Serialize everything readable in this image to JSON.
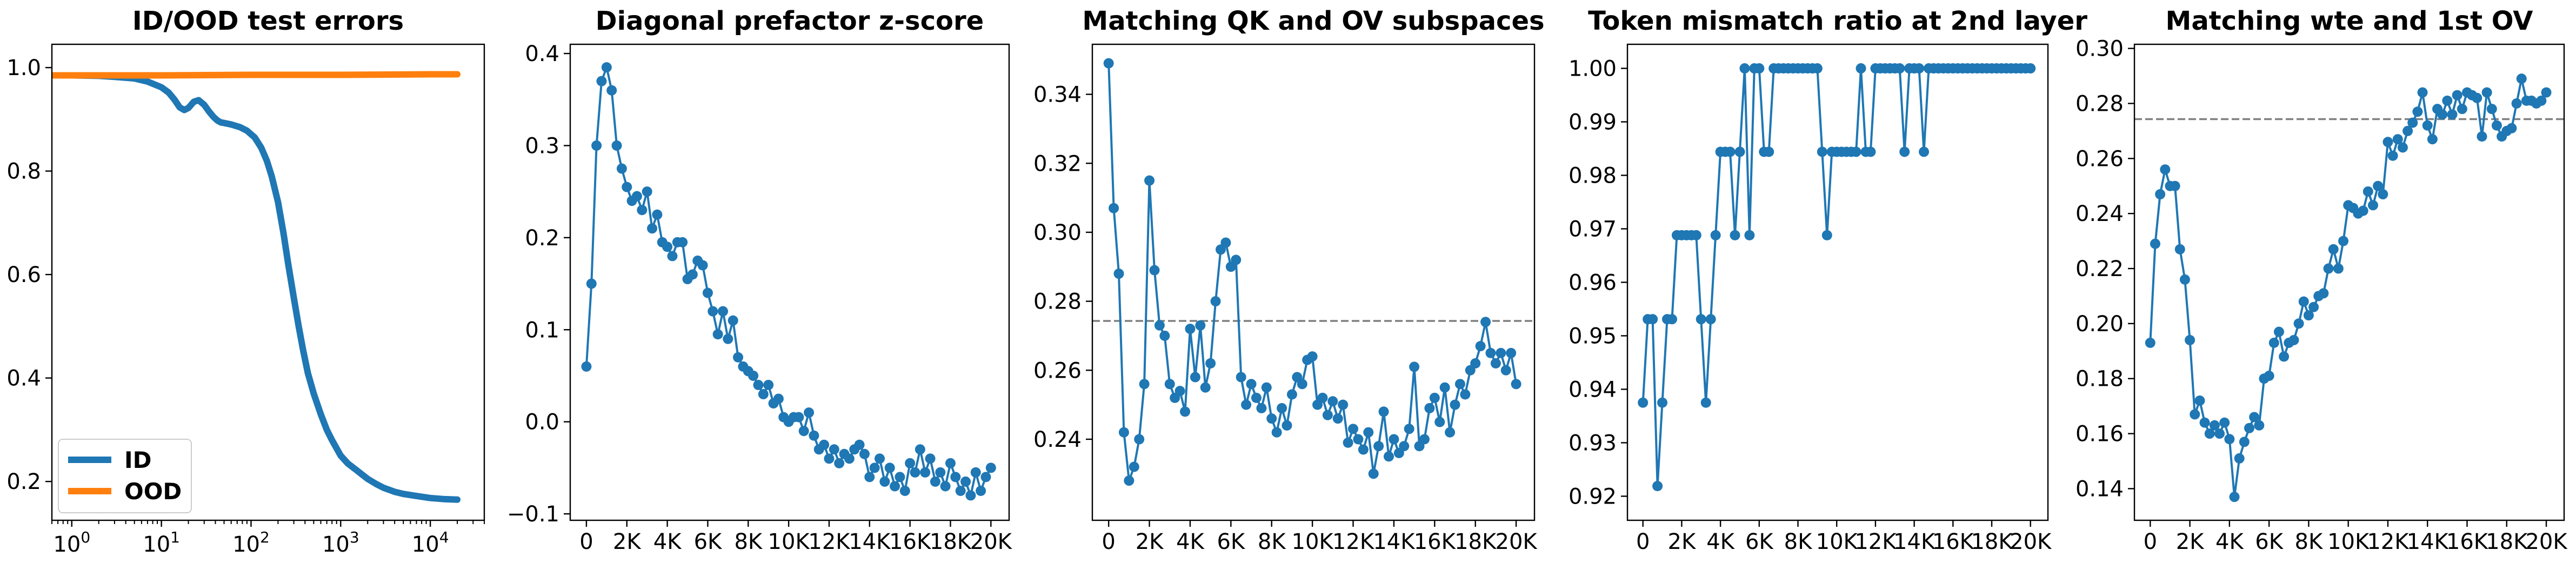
{
  "chart_data": [
    {
      "type": "line",
      "title": "ID/OOD test errors",
      "xscale": "log",
      "xlim": [
        0.6,
        40000
      ],
      "ylim": [
        0.125,
        1.045
      ],
      "xticks": [
        1,
        10,
        100,
        1000,
        10000
      ],
      "xtick_labels": [
        "10^0",
        "10^1",
        "10^2",
        "10^3",
        "10^4"
      ],
      "yticks": [
        0.2,
        0.4,
        0.6,
        0.8,
        1.0
      ],
      "ytick_labels": [
        "0.2",
        "0.4",
        "0.6",
        "0.8",
        "1.0"
      ],
      "legend_position": "lower-left",
      "series": [
        {
          "name": "ID",
          "color": "#1f77b4",
          "x": [
            0.6,
            1,
            2,
            3,
            5,
            7,
            10,
            12,
            14,
            16,
            18,
            20,
            23,
            26,
            30,
            34,
            38,
            42,
            46,
            50,
            60,
            75,
            90,
            110,
            130,
            150,
            170,
            200,
            230,
            260,
            300,
            340,
            380,
            430,
            500,
            600,
            700,
            800,
            1000,
            1200,
            1500,
            2000,
            2500,
            3000,
            4000,
            5000,
            7000,
            10000,
            14000,
            20000
          ],
          "y": [
            0.985,
            0.985,
            0.984,
            0.982,
            0.979,
            0.973,
            0.962,
            0.952,
            0.938,
            0.923,
            0.918,
            0.922,
            0.934,
            0.937,
            0.928,
            0.915,
            0.905,
            0.898,
            0.894,
            0.893,
            0.89,
            0.885,
            0.878,
            0.865,
            0.845,
            0.82,
            0.79,
            0.74,
            0.68,
            0.62,
            0.555,
            0.5,
            0.455,
            0.41,
            0.37,
            0.33,
            0.3,
            0.28,
            0.25,
            0.235,
            0.222,
            0.205,
            0.195,
            0.188,
            0.18,
            0.176,
            0.172,
            0.168,
            0.166,
            0.165
          ]
        },
        {
          "name": "OOD",
          "color": "#ff7f0e",
          "x": [
            0.6,
            1,
            10,
            100,
            1000,
            10000,
            20000
          ],
          "y": [
            0.985,
            0.985,
            0.985,
            0.986,
            0.986,
            0.987,
            0.987
          ]
        }
      ]
    },
    {
      "type": "line",
      "title": "Diagonal prefactor z-score",
      "xlim": [
        -800,
        20900
      ],
      "ylim": [
        -0.107,
        0.41
      ],
      "xticks": [
        0,
        2000,
        4000,
        6000,
        8000,
        10000,
        12000,
        14000,
        16000,
        18000,
        20000
      ],
      "xtick_labels": [
        "0",
        "2K",
        "4K",
        "6K",
        "8K",
        "10K",
        "12K",
        "14K",
        "16K",
        "18K",
        "20K"
      ],
      "yticks": [
        -0.1,
        0.0,
        0.1,
        0.2,
        0.3,
        0.4
      ],
      "ytick_labels": [
        "−0.1",
        "0.0",
        "0.1",
        "0.2",
        "0.3",
        "0.4"
      ],
      "marker": "circle",
      "series": [
        {
          "color": "#1f77b4",
          "x": [
            0,
            250,
            500,
            750,
            1000,
            1250,
            1500,
            1750,
            2000,
            2250,
            2500,
            2750,
            3000,
            3250,
            3500,
            3750,
            4000,
            4250,
            4500,
            4750,
            5000,
            5250,
            5500,
            5750,
            6000,
            6250,
            6500,
            6750,
            7000,
            7250,
            7500,
            7750,
            8000,
            8250,
            8500,
            8750,
            9000,
            9250,
            9500,
            9750,
            10000,
            10250,
            10500,
            10750,
            11000,
            11250,
            11500,
            11750,
            12000,
            12250,
            12500,
            12750,
            13000,
            13250,
            13500,
            13750,
            14000,
            14250,
            14500,
            14750,
            15000,
            15250,
            15500,
            15750,
            16000,
            16250,
            16500,
            16750,
            17000,
            17250,
            17500,
            17750,
            18000,
            18250,
            18500,
            18750,
            19000,
            19250,
            19500,
            19750,
            20000
          ],
          "y": [
            0.06,
            0.15,
            0.3,
            0.37,
            0.385,
            0.36,
            0.3,
            0.275,
            0.255,
            0.24,
            0.245,
            0.23,
            0.25,
            0.21,
            0.225,
            0.195,
            0.19,
            0.18,
            0.195,
            0.195,
            0.155,
            0.16,
            0.175,
            0.17,
            0.14,
            0.12,
            0.095,
            0.12,
            0.09,
            0.11,
            0.07,
            0.06,
            0.055,
            0.05,
            0.04,
            0.03,
            0.04,
            0.02,
            0.025,
            0.005,
            0.0,
            0.005,
            0.005,
            -0.01,
            0.01,
            -0.015,
            -0.03,
            -0.025,
            -0.04,
            -0.03,
            -0.045,
            -0.035,
            -0.04,
            -0.03,
            -0.025,
            -0.035,
            -0.06,
            -0.05,
            -0.04,
            -0.065,
            -0.05,
            -0.07,
            -0.06,
            -0.075,
            -0.045,
            -0.055,
            -0.03,
            -0.055,
            -0.04,
            -0.065,
            -0.055,
            -0.07,
            -0.045,
            -0.06,
            -0.075,
            -0.065,
            -0.08,
            -0.055,
            -0.075,
            -0.06,
            -0.05
          ]
        }
      ]
    },
    {
      "type": "line",
      "title": "Matching QK and OV subspaces",
      "xlim": [
        -800,
        20900
      ],
      "ylim": [
        0.2165,
        0.3545
      ],
      "xticks": [
        0,
        2000,
        4000,
        6000,
        8000,
        10000,
        12000,
        14000,
        16000,
        18000,
        20000
      ],
      "xtick_labels": [
        "0",
        "2K",
        "4K",
        "6K",
        "8K",
        "10K",
        "12K",
        "14K",
        "16K",
        "18K",
        "20K"
      ],
      "yticks": [
        0.24,
        0.26,
        0.28,
        0.3,
        0.32,
        0.34
      ],
      "ytick_labels": [
        "0.24",
        "0.26",
        "0.28",
        "0.30",
        "0.32",
        "0.34"
      ],
      "hline": 0.2743,
      "marker": "circle",
      "series": [
        {
          "color": "#1f77b4",
          "x": [
            0,
            250,
            500,
            750,
            1000,
            1250,
            1500,
            1750,
            2000,
            2250,
            2500,
            2750,
            3000,
            3250,
            3500,
            3750,
            4000,
            4250,
            4500,
            4750,
            5000,
            5250,
            5500,
            5750,
            6000,
            6250,
            6500,
            6750,
            7000,
            7250,
            7500,
            7750,
            8000,
            8250,
            8500,
            8750,
            9000,
            9250,
            9500,
            9750,
            10000,
            10250,
            10500,
            10750,
            11000,
            11250,
            11500,
            11750,
            12000,
            12250,
            12500,
            12750,
            13000,
            13250,
            13500,
            13750,
            14000,
            14250,
            14500,
            14750,
            15000,
            15250,
            15500,
            15750,
            16000,
            16250,
            16500,
            16750,
            17000,
            17250,
            17500,
            17750,
            18000,
            18250,
            18500,
            18750,
            19000,
            19250,
            19500,
            19750,
            20000
          ],
          "y": [
            0.349,
            0.307,
            0.288,
            0.242,
            0.228,
            0.232,
            0.24,
            0.256,
            0.315,
            0.289,
            0.273,
            0.27,
            0.256,
            0.252,
            0.254,
            0.248,
            0.272,
            0.258,
            0.273,
            0.255,
            0.262,
            0.28,
            0.295,
            0.297,
            0.29,
            0.292,
            0.258,
            0.25,
            0.256,
            0.252,
            0.249,
            0.255,
            0.246,
            0.242,
            0.249,
            0.244,
            0.253,
            0.258,
            0.256,
            0.263,
            0.264,
            0.25,
            0.252,
            0.247,
            0.251,
            0.246,
            0.25,
            0.239,
            0.243,
            0.24,
            0.237,
            0.242,
            0.23,
            0.238,
            0.248,
            0.235,
            0.24,
            0.236,
            0.238,
            0.243,
            0.261,
            0.238,
            0.24,
            0.249,
            0.252,
            0.245,
            0.255,
            0.242,
            0.25,
            0.256,
            0.253,
            0.26,
            0.262,
            0.267,
            0.274,
            0.265,
            0.262,
            0.265,
            0.26,
            0.265,
            0.256
          ]
        }
      ]
    },
    {
      "type": "line",
      "title": "Token mismatch ratio at 2nd layer",
      "xlim": [
        -800,
        20900
      ],
      "ylim": [
        0.9155,
        1.0045
      ],
      "xticks": [
        0,
        2000,
        4000,
        6000,
        8000,
        10000,
        12000,
        14000,
        16000,
        18000,
        20000
      ],
      "xtick_labels": [
        "0",
        "2K",
        "4K",
        "6K",
        "8K",
        "10K",
        "12K",
        "14K",
        "16K",
        "18K",
        "20K"
      ],
      "yticks": [
        0.92,
        0.93,
        0.94,
        0.95,
        0.96,
        0.97,
        0.98,
        0.99,
        1.0
      ],
      "ytick_labels": [
        "0.92",
        "0.93",
        "0.94",
        "0.95",
        "0.96",
        "0.97",
        "0.98",
        "0.99",
        "1.00"
      ],
      "marker": "circle",
      "series": [
        {
          "color": "#1f77b4",
          "x": [
            0,
            250,
            500,
            750,
            1000,
            1250,
            1500,
            1750,
            2000,
            2250,
            2500,
            2750,
            3000,
            3250,
            3500,
            3750,
            4000,
            4250,
            4500,
            4750,
            5000,
            5250,
            5500,
            5750,
            6000,
            6250,
            6500,
            6750,
            7000,
            7250,
            7500,
            7750,
            8000,
            8250,
            8500,
            8750,
            9000,
            9250,
            9500,
            9750,
            10000,
            10250,
            10500,
            10750,
            11000,
            11250,
            11500,
            11750,
            12000,
            12250,
            12500,
            12750,
            13000,
            13250,
            13500,
            13750,
            14000,
            14250,
            14500,
            14750,
            15000,
            15250,
            15500,
            15750,
            16000,
            16250,
            16500,
            16750,
            17000,
            17250,
            17500,
            17750,
            18000,
            18250,
            18500,
            18750,
            19000,
            19250,
            19500,
            19750,
            20000
          ],
          "y": [
            0.9375,
            0.9531,
            0.9531,
            0.9219,
            0.9375,
            0.9531,
            0.9531,
            0.9688,
            0.9688,
            0.9688,
            0.9688,
            0.9688,
            0.9531,
            0.9375,
            0.9531,
            0.9688,
            0.9844,
            0.9844,
            0.9844,
            0.9688,
            0.9844,
            1.0,
            0.9688,
            1.0,
            1.0,
            0.9844,
            0.9844,
            1.0,
            1.0,
            1.0,
            1.0,
            1.0,
            1.0,
            1.0,
            1.0,
            1.0,
            1.0,
            0.9844,
            0.9688,
            0.9844,
            0.9844,
            0.9844,
            0.9844,
            0.9844,
            0.9844,
            1.0,
            0.9844,
            0.9844,
            1.0,
            1.0,
            1.0,
            1.0,
            1.0,
            1.0,
            0.9844,
            1.0,
            1.0,
            1.0,
            0.9844,
            1.0,
            1.0,
            1.0,
            1.0,
            1.0,
            1.0,
            1.0,
            1.0,
            1.0,
            1.0,
            1.0,
            1.0,
            1.0,
            1.0,
            1.0,
            1.0,
            1.0,
            1.0,
            1.0,
            1.0,
            1.0,
            1.0
          ]
        }
      ]
    },
    {
      "type": "line",
      "title": "Matching wte and 1st OV",
      "xlim": [
        -800,
        20900
      ],
      "ylim": [
        0.1285,
        0.3015
      ],
      "xticks": [
        0,
        2000,
        4000,
        6000,
        8000,
        10000,
        12000,
        14000,
        16000,
        18000,
        20000
      ],
      "xtick_labels": [
        "0",
        "2K",
        "4K",
        "6K",
        "8K",
        "10K",
        "12K",
        "14K",
        "16K",
        "18K",
        "20K"
      ],
      "yticks": [
        0.14,
        0.16,
        0.18,
        0.2,
        0.22,
        0.24,
        0.26,
        0.28,
        0.3
      ],
      "ytick_labels": [
        "0.14",
        "0.16",
        "0.18",
        "0.20",
        "0.22",
        "0.24",
        "0.26",
        "0.28",
        "0.30"
      ],
      "hline": 0.2743,
      "marker": "circle",
      "series": [
        {
          "color": "#1f77b4",
          "x": [
            0,
            250,
            500,
            750,
            1000,
            1250,
            1500,
            1750,
            2000,
            2250,
            2500,
            2750,
            3000,
            3250,
            3500,
            3750,
            4000,
            4250,
            4500,
            4750,
            5000,
            5250,
            5500,
            5750,
            6000,
            6250,
            6500,
            6750,
            7000,
            7250,
            7500,
            7750,
            8000,
            8250,
            8500,
            8750,
            9000,
            9250,
            9500,
            9750,
            10000,
            10250,
            10500,
            10750,
            11000,
            11250,
            11500,
            11750,
            12000,
            12250,
            12500,
            12750,
            13000,
            13250,
            13500,
            13750,
            14000,
            14250,
            14500,
            14750,
            15000,
            15250,
            15500,
            15750,
            16000,
            16250,
            16500,
            16750,
            17000,
            17250,
            17500,
            17750,
            18000,
            18250,
            18500,
            18750,
            19000,
            19250,
            19500,
            19750,
            20000
          ],
          "y": [
            0.193,
            0.229,
            0.247,
            0.256,
            0.25,
            0.25,
            0.227,
            0.216,
            0.194,
            0.167,
            0.172,
            0.164,
            0.16,
            0.163,
            0.16,
            0.164,
            0.158,
            0.137,
            0.151,
            0.157,
            0.162,
            0.166,
            0.163,
            0.18,
            0.181,
            0.193,
            0.197,
            0.188,
            0.193,
            0.194,
            0.2,
            0.208,
            0.203,
            0.206,
            0.21,
            0.211,
            0.22,
            0.227,
            0.22,
            0.23,
            0.243,
            0.242,
            0.24,
            0.241,
            0.248,
            0.243,
            0.25,
            0.247,
            0.266,
            0.261,
            0.267,
            0.264,
            0.27,
            0.273,
            0.277,
            0.284,
            0.272,
            0.267,
            0.278,
            0.276,
            0.281,
            0.276,
            0.283,
            0.278,
            0.284,
            0.283,
            0.282,
            0.268,
            0.284,
            0.278,
            0.272,
            0.268,
            0.27,
            0.271,
            0.28,
            0.289,
            0.281,
            0.281,
            0.28,
            0.281,
            0.284
          ]
        }
      ]
    }
  ],
  "legend": {
    "items": [
      {
        "label": "ID",
        "color": "#1f77b4"
      },
      {
        "label": "OOD",
        "color": "#ff7f0e"
      }
    ]
  },
  "style": {
    "axis_color": "#000000",
    "dashed_line_color": "#808080",
    "background": "#ffffff"
  }
}
